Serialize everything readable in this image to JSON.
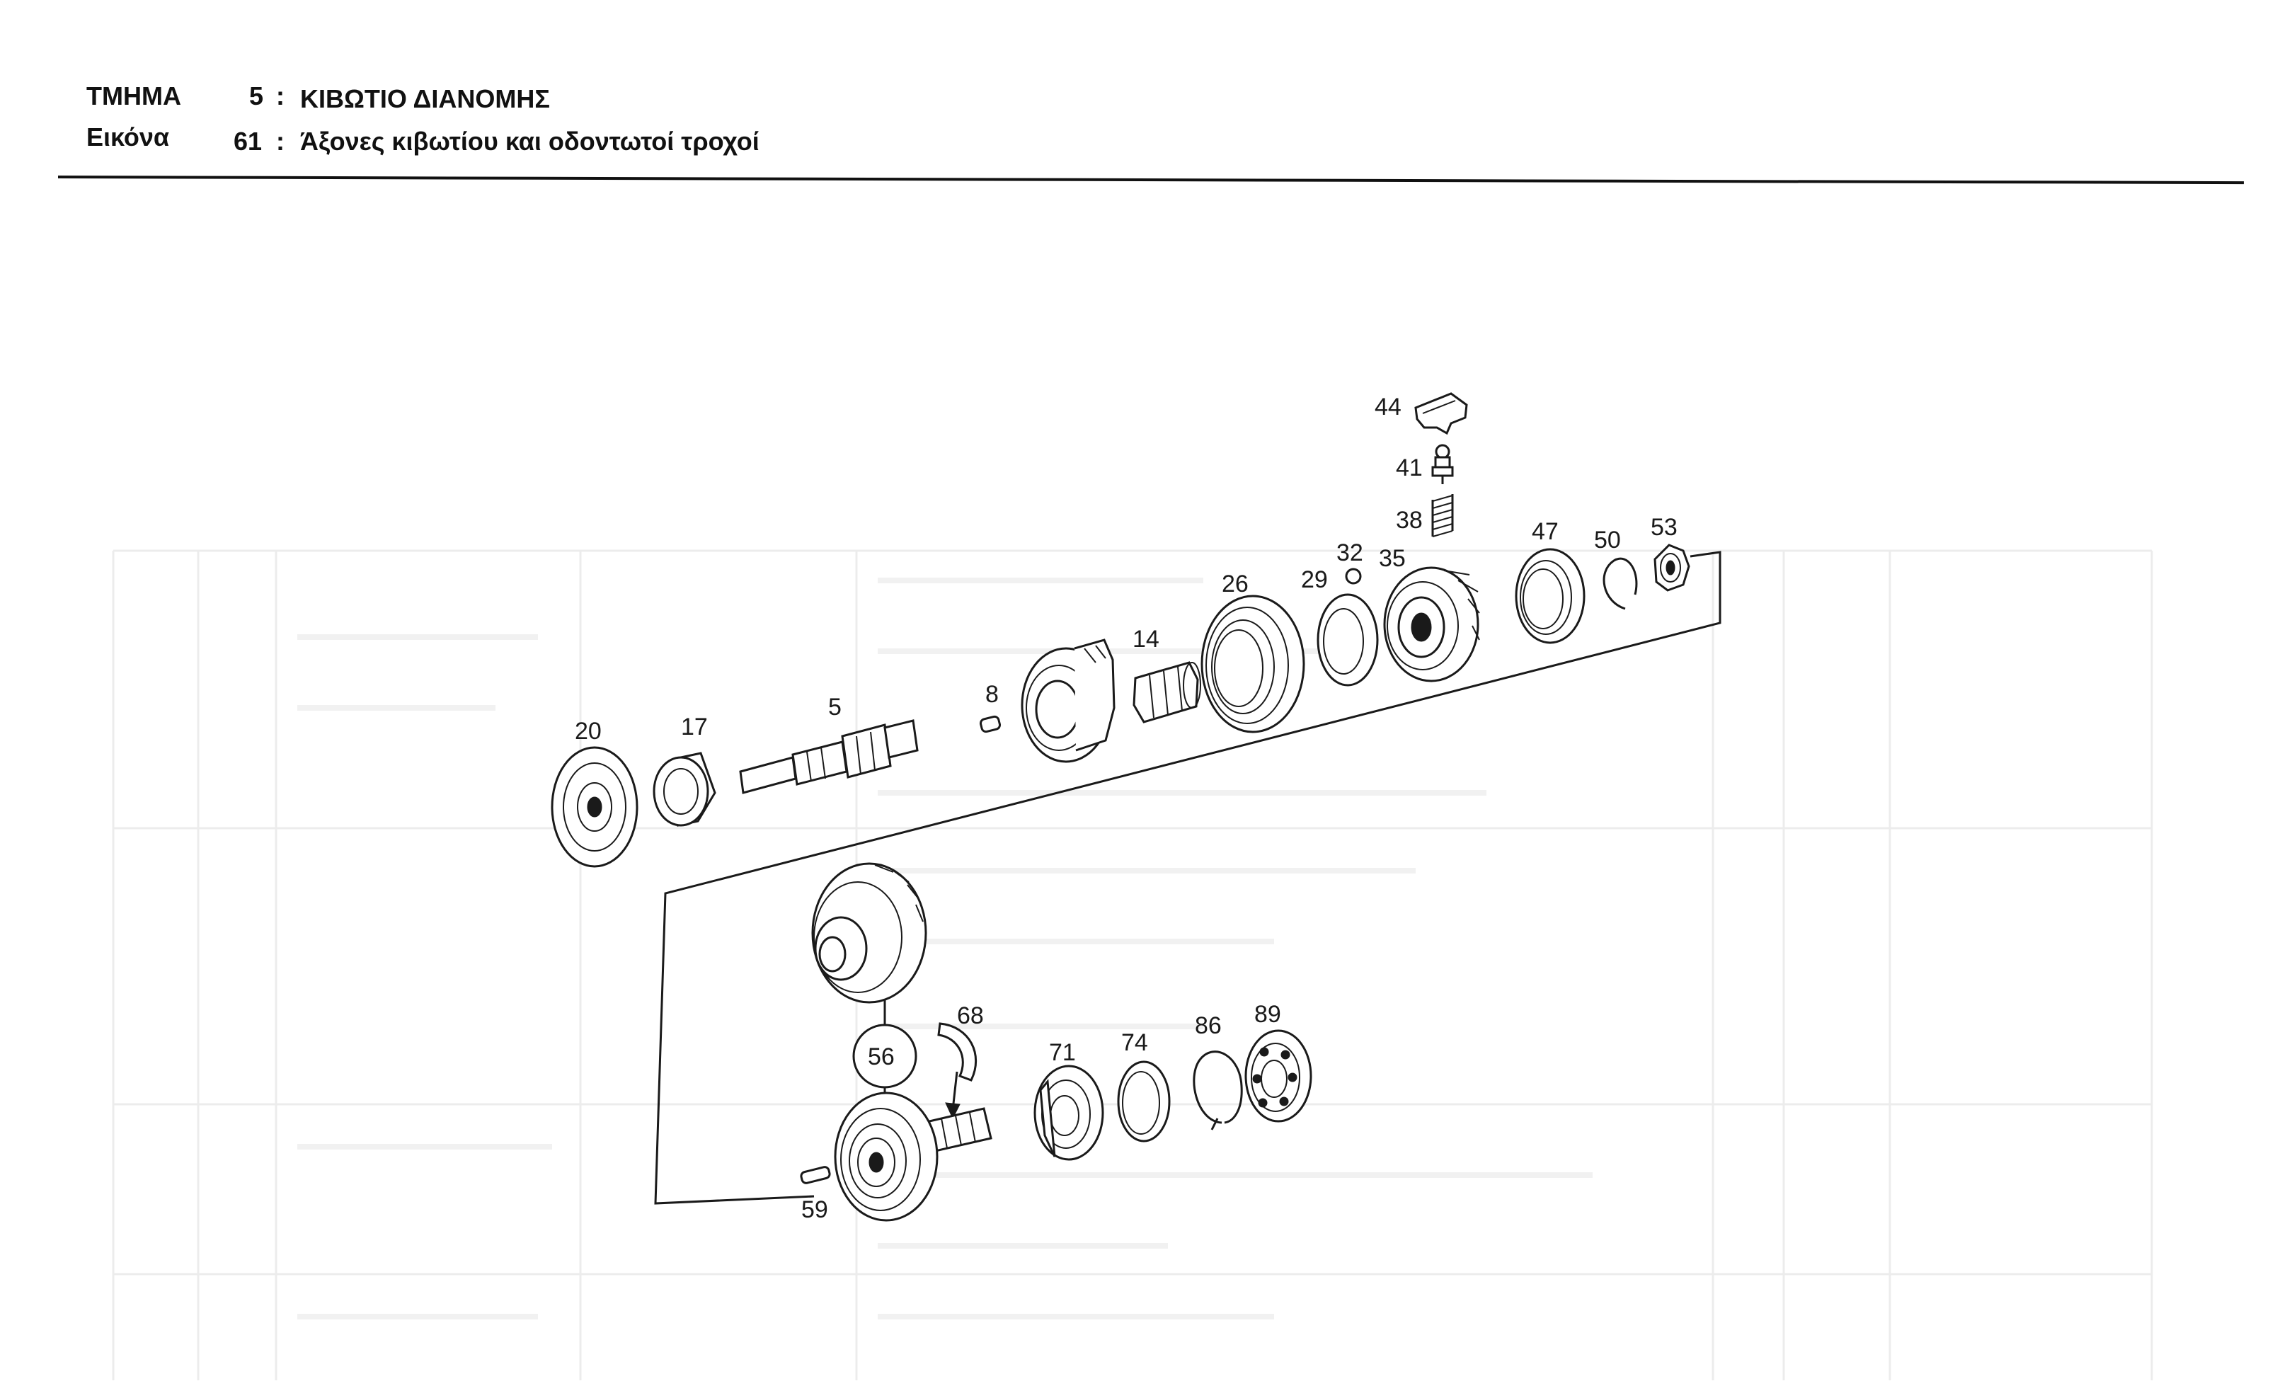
{
  "header": {
    "row1": {
      "label": "ΤΜΗΜΑ",
      "number": "5",
      "separator": ":",
      "title": "ΚΙΒΩΤΙΟ ΔΙΑΝΟΜΗΣ"
    },
    "row2": {
      "label": "Εικόνα",
      "number": "61",
      "separator": ":",
      "title": "Άξονες κιβωτίου και οδοντωτοί τροχοί"
    }
  },
  "diagram": {
    "callouts": {
      "p44": "44",
      "p41": "41",
      "p38": "38",
      "p32": "32",
      "p35": "35",
      "p47": "47",
      "p50": "50",
      "p53": "53",
      "p29": "29",
      "p26": "26",
      "p14": "14",
      "p8": "8",
      "p5": "5",
      "p20": "20",
      "p17": "17",
      "p68": "68",
      "p56": "56",
      "p71": "71",
      "p74": "74",
      "p86": "86",
      "p89": "89",
      "p59": "59"
    }
  }
}
